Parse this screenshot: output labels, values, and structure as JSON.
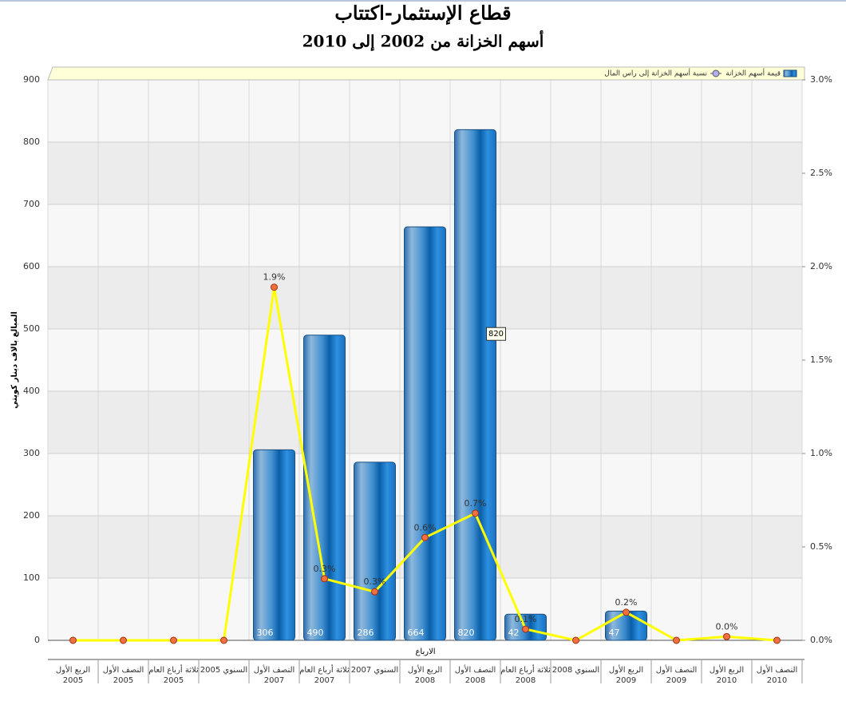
{
  "chart_data": {
    "type": "bar-line",
    "title": "قطاع الإستثمار-اكتتاب",
    "subtitle": "أسهم الخزانة من 2002 إلى 2010",
    "y_label": "المبالغ بالاف دينار كويتي",
    "x_label": "الارباع",
    "categories": [
      "الربع الأول\n2005",
      "النصف الأول\n2005",
      "ثلاثة أرباع العام\n2005",
      "السنوي 2005",
      "النصف الأول\n2007",
      "ثلاثة أرباع العام\n2007",
      "السنوي 2007",
      "الربع الأول\n2008",
      "النصف الأول\n2008",
      "ثلاثة أرباع العام\n2008",
      "السنوي 2008",
      "الربع الأول\n2009",
      "النصف الأول\n2009",
      "الربع الأول\n2010",
      "النصف الأول\n2010"
    ],
    "series": [
      {
        "name": "قيمة أسهم الخزانة",
        "color": "#2a7fc8",
        "values": [
          0,
          0,
          0,
          0,
          306,
          490,
          286,
          664,
          820,
          42,
          0,
          47,
          0,
          0,
          0
        ]
      },
      {
        "name": "نسبة أسهم الخزانة إلى راس المال",
        "color": "#ffff00",
        "axis": "y2",
        "values": [
          0,
          0,
          0,
          0,
          1.89,
          0.33,
          0.26,
          0.55,
          0.68,
          0.06,
          0,
          0.15,
          0,
          0.02,
          0
        ],
        "value_labels": [
          null,
          null,
          null,
          null,
          "1.9%",
          "0.3%",
          "0.3%",
          "0.6%",
          "0.7%",
          "0.1%",
          null,
          "0.2%",
          null,
          "0.0%",
          null
        ]
      }
    ],
    "tooltip_index": 8,
    "ylim": [
      0,
      900
    ],
    "yticks": [
      0,
      100,
      200,
      300,
      400,
      500,
      600,
      700,
      800,
      900
    ],
    "y2lim": [
      0,
      3.0
    ],
    "y2ticks": [
      {
        "value": 0,
        "label": "0.0%"
      },
      {
        "value": 0.5,
        "label": "0.5%"
      },
      {
        "value": 1.0,
        "label": "1.0%"
      },
      {
        "value": 1.5,
        "label": "1.5%"
      },
      {
        "value": 2.0,
        "label": "2.0%"
      },
      {
        "value": 2.5,
        "label": "2.5%"
      },
      {
        "value": 3.0,
        "label": "3.0%"
      }
    ],
    "grid": true
  }
}
